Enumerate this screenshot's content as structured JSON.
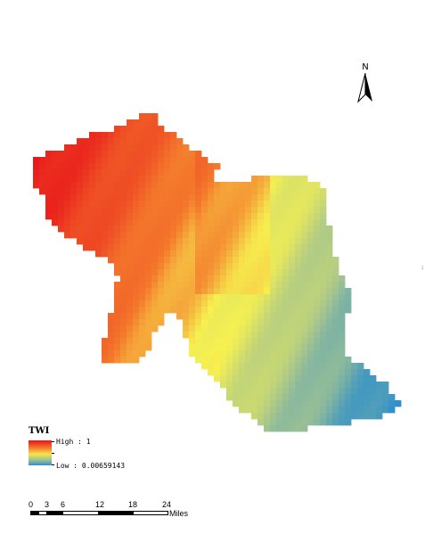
{
  "map": {
    "north_label": "N",
    "north_icon": "north-arrow-icon",
    "legend": {
      "title": "TWI",
      "high_label": "High : 1",
      "low_label": "Low : 0.00659143",
      "colors": [
        "#e8141a",
        "#f47a2c",
        "#f6e54a",
        "#9fc292",
        "#2e8fcb"
      ]
    },
    "scale_bar": {
      "ticks": [
        "0",
        "3",
        "6",
        "12",
        "18",
        "24"
      ],
      "units": "Miles"
    }
  }
}
